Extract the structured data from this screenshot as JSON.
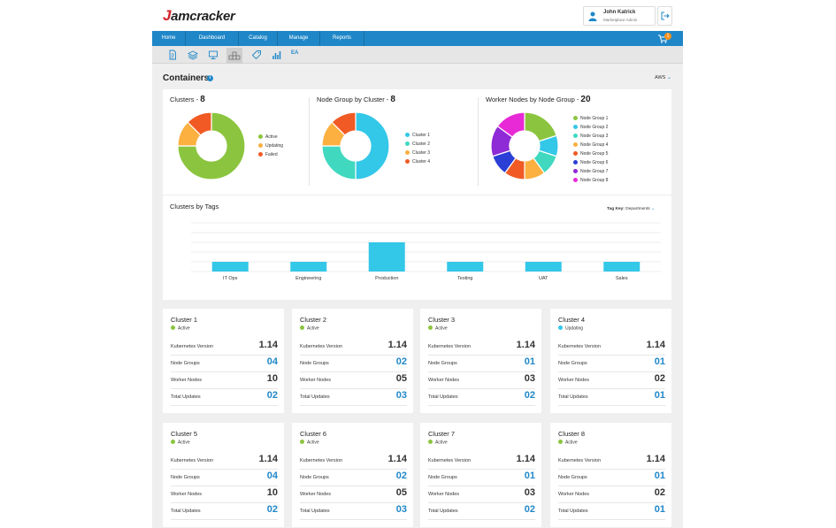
{
  "header": {
    "logo_mark": "J",
    "logo_text": "amcracker",
    "user_name": "John Katrick",
    "user_role": "Marketplace Admin"
  },
  "nav": {
    "items": [
      "Home",
      "Dashboard",
      "Catalog",
      "Manage",
      "Reports"
    ],
    "cart_count": "1"
  },
  "toolbar": {
    "ea_label": "EA"
  },
  "page": {
    "title": "Containers",
    "cloud_select": "AWS"
  },
  "colors": {
    "accent": "#1f87c8",
    "active": "#8bc53f",
    "updating": "#33c7e8",
    "failed": "#f15a24",
    "warn": "#fbb040"
  },
  "chart_data": [
    {
      "type": "pie",
      "title": "Clusters",
      "total": "8",
      "categories": [
        "Active",
        "Updating",
        "Failed"
      ],
      "values": [
        6,
        1,
        1
      ],
      "colors": [
        "#8bc53f",
        "#fbb040",
        "#f15a24"
      ]
    },
    {
      "type": "pie",
      "title": "Node Group by Cluster",
      "total": "8",
      "categories": [
        "Cluster 1",
        "Cluster 2",
        "Cluster 3",
        "Cluster 4"
      ],
      "values": [
        4,
        2,
        1,
        1
      ],
      "colors": [
        "#33c7e8",
        "#40d9c0",
        "#fbb040",
        "#f15a24"
      ]
    },
    {
      "type": "pie",
      "title": "Worker Nodes by Node Group",
      "total": "20",
      "categories": [
        "Node Group 1",
        "Node Group 2",
        "Node Group 3",
        "Node Group 4",
        "Node Group 5",
        "Node Group 6",
        "Node Group 7",
        "Node Group 8"
      ],
      "values": [
        4,
        2,
        2,
        2,
        2,
        2,
        3,
        3
      ],
      "colors": [
        "#8bc53f",
        "#33c7e8",
        "#40d9c0",
        "#fbb040",
        "#f15a24",
        "#2b3fd6",
        "#8e2ad6",
        "#e82ad6"
      ]
    },
    {
      "type": "bar",
      "title": "Clusters by Tags",
      "tag_key_label": "Tag Key:",
      "tag_key_value": "Departments",
      "categories": [
        "IT Ops",
        "Engineering",
        "Production",
        "Testing",
        "UAT",
        "Sales"
      ],
      "values": [
        1,
        1,
        3,
        1,
        1,
        1
      ],
      "yticks": [
        "0",
        "1",
        "2",
        "3",
        "4",
        "5"
      ],
      "ylim": [
        0,
        5
      ],
      "color": "#33c7e8"
    }
  ],
  "metric_labels": [
    "Kubernetes Version",
    "Node Groups",
    "Worker Nodes",
    "Total Updates"
  ],
  "clusters": [
    {
      "name": "Cluster 1",
      "status": "Active",
      "version": "1.14",
      "node_groups": "04",
      "worker_nodes": "10",
      "updates": "02"
    },
    {
      "name": "Cluster 2",
      "status": "Active",
      "version": "1.14",
      "node_groups": "02",
      "worker_nodes": "05",
      "updates": "03"
    },
    {
      "name": "Cluster 3",
      "status": "Active",
      "version": "1.14",
      "node_groups": "01",
      "worker_nodes": "03",
      "updates": "02"
    },
    {
      "name": "Cluster 4",
      "status": "Updating",
      "version": "1.14",
      "node_groups": "01",
      "worker_nodes": "02",
      "updates": "01"
    },
    {
      "name": "Cluster 5",
      "status": "Active",
      "version": "1.14",
      "node_groups": "04",
      "worker_nodes": "10",
      "updates": "02"
    },
    {
      "name": "Cluster 6",
      "status": "Active",
      "version": "1.14",
      "node_groups": "02",
      "worker_nodes": "05",
      "updates": "03"
    },
    {
      "name": "Cluster 7",
      "status": "Active",
      "version": "1.14",
      "node_groups": "01",
      "worker_nodes": "03",
      "updates": "02"
    },
    {
      "name": "Cluster 8",
      "status": "Active",
      "version": "1.14",
      "node_groups": "01",
      "worker_nodes": "02",
      "updates": "01"
    }
  ]
}
